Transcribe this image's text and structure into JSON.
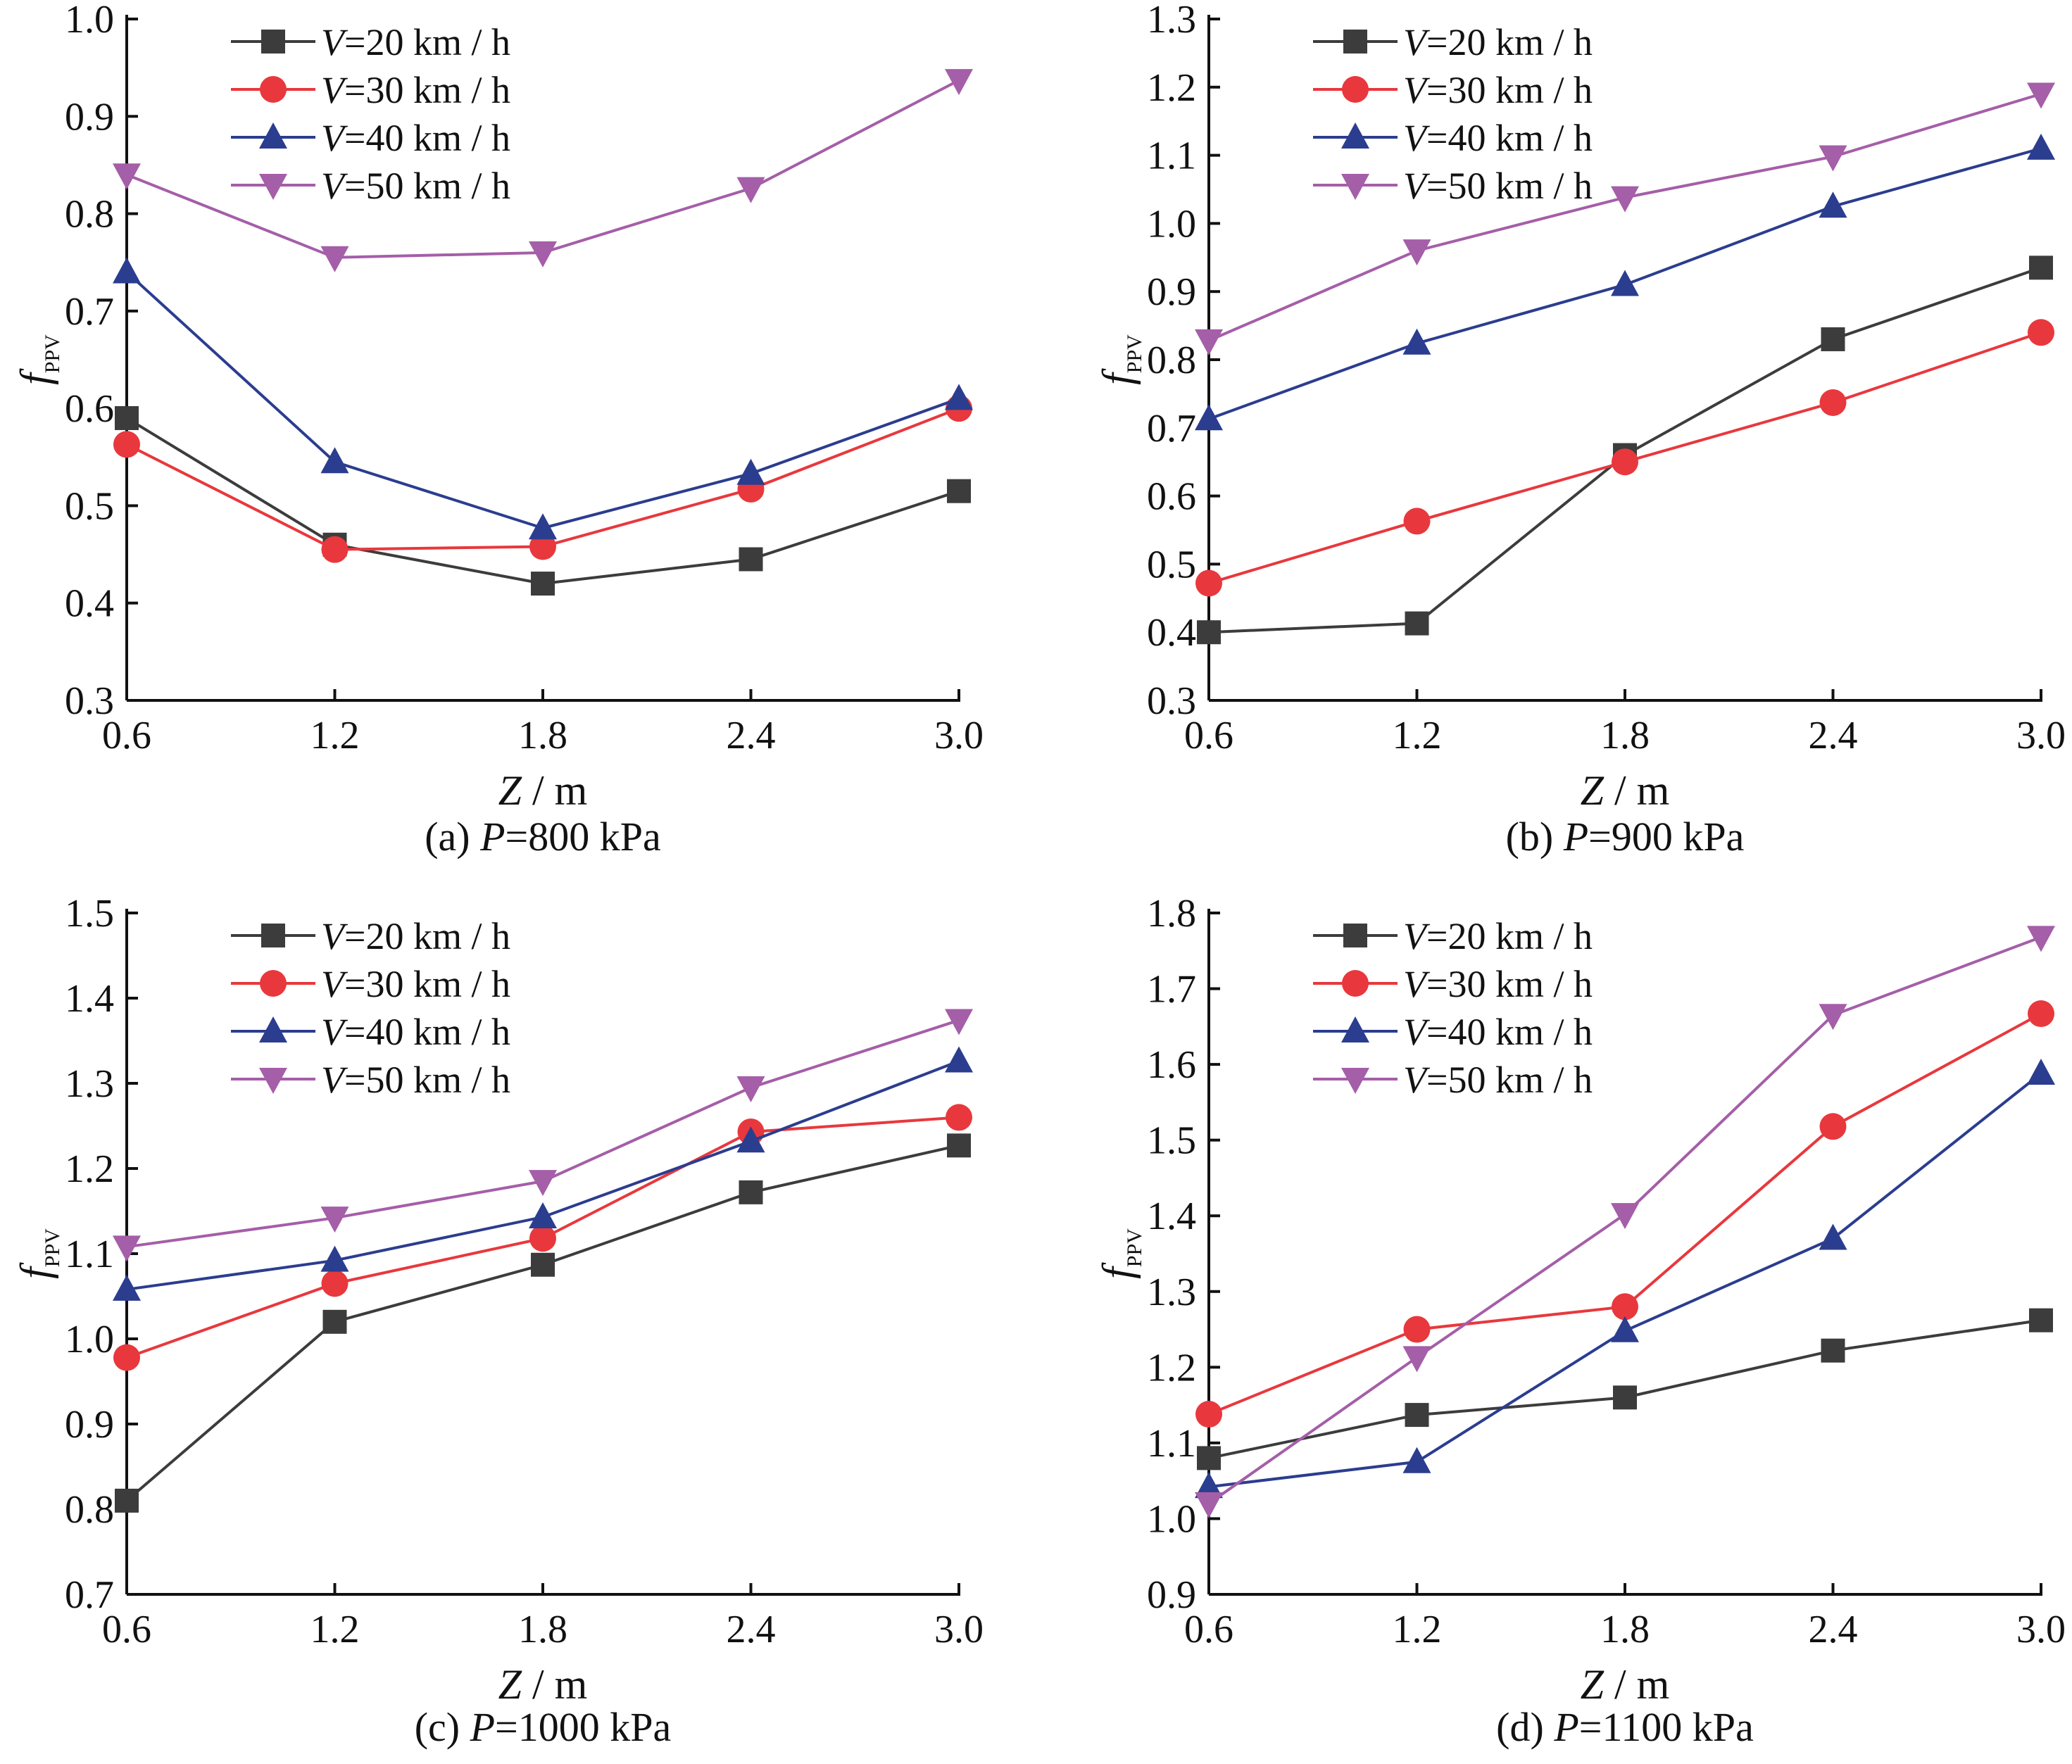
{
  "figure": {
    "series_style": [
      {
        "color": "#3c3c3c",
        "marker": "square"
      },
      {
        "color": "#e8383d",
        "marker": "circle"
      },
      {
        "color": "#2b3d8f",
        "marker": "triangle-up"
      },
      {
        "color": "#a55ea8",
        "marker": "triangle-down"
      }
    ]
  },
  "chart_data": [
    {
      "type": "line",
      "caption_prefix": "(a) ",
      "caption_var": "P",
      "caption_suffix": "=800 kPa",
      "xlabel_var": "Z",
      "xlabel_unit": " / m",
      "ylabel_main": "f",
      "ylabel_sub": "PPV",
      "x": [
        0.6,
        1.2,
        1.8,
        2.4,
        3.0
      ],
      "x_ticks": [
        "0.6",
        "1.2",
        "1.8",
        "2.4",
        "3.0"
      ],
      "xlim": [
        0.6,
        3.0
      ],
      "ylim": [
        0.3,
        1.0
      ],
      "y_ticks": [
        "0.3",
        "0.4",
        "0.5",
        "0.6",
        "0.7",
        "0.8",
        "0.9",
        "1.0"
      ],
      "legend_position": "top-left",
      "series": [
        {
          "name_var": "V",
          "name_rest": "=20 km / h",
          "values": [
            0.59,
            0.46,
            0.42,
            0.445,
            0.515
          ]
        },
        {
          "name_var": "V",
          "name_rest": "=30 km / h",
          "values": [
            0.563,
            0.455,
            0.458,
            0.517,
            0.6
          ]
        },
        {
          "name_var": "V",
          "name_rest": "=40 km / h",
          "values": [
            0.74,
            0.545,
            0.477,
            0.533,
            0.61
          ]
        },
        {
          "name_var": "V",
          "name_rest": "=50 km / h",
          "values": [
            0.84,
            0.755,
            0.76,
            0.826,
            0.937
          ]
        }
      ]
    },
    {
      "type": "line",
      "caption_prefix": "(b) ",
      "caption_var": "P",
      "caption_suffix": "=900 kPa",
      "xlabel_var": "Z",
      "xlabel_unit": " / m",
      "ylabel_main": "f",
      "ylabel_sub": "PPV",
      "x": [
        0.6,
        1.2,
        1.8,
        2.4,
        3.0
      ],
      "x_ticks": [
        "0.6",
        "1.2",
        "1.8",
        "2.4",
        "3.0"
      ],
      "xlim": [
        0.6,
        3.0
      ],
      "ylim": [
        0.3,
        1.3
      ],
      "y_ticks": [
        "0.3",
        "0.4",
        "0.5",
        "0.6",
        "0.7",
        "0.8",
        "0.9",
        "1.0",
        "1.1",
        "1.2",
        "1.3"
      ],
      "legend_position": "top-left",
      "series": [
        {
          "name_var": "V",
          "name_rest": "=20 km / h",
          "values": [
            0.4,
            0.413,
            0.66,
            0.83,
            0.935
          ]
        },
        {
          "name_var": "V",
          "name_rest": "=30 km / h",
          "values": [
            0.472,
            0.563,
            0.65,
            0.737,
            0.84
          ]
        },
        {
          "name_var": "V",
          "name_rest": "=40 km / h",
          "values": [
            0.713,
            0.824,
            0.91,
            1.025,
            1.11
          ]
        },
        {
          "name_var": "V",
          "name_rest": "=50 km / h",
          "values": [
            0.828,
            0.96,
            1.038,
            1.098,
            1.19
          ]
        }
      ]
    },
    {
      "type": "line",
      "caption_prefix": "(c) ",
      "caption_var": "P",
      "caption_suffix": "=1000 kPa",
      "xlabel_var": "Z",
      "xlabel_unit": " / m",
      "ylabel_main": "f",
      "ylabel_sub": "PPV",
      "x": [
        0.6,
        1.2,
        1.8,
        2.4,
        3.0
      ],
      "x_ticks": [
        "0.6",
        "1.2",
        "1.8",
        "2.4",
        "3.0"
      ],
      "xlim": [
        0.6,
        3.0
      ],
      "ylim": [
        0.7,
        1.5
      ],
      "y_ticks": [
        "0.7",
        "0.8",
        "0.9",
        "1.0",
        "1.1",
        "1.2",
        "1.3",
        "1.4",
        "1.5"
      ],
      "legend_position": "top-left",
      "series": [
        {
          "name_var": "V",
          "name_rest": "=20 km / h",
          "values": [
            0.81,
            1.02,
            1.087,
            1.172,
            1.227
          ]
        },
        {
          "name_var": "V",
          "name_rest": "=30 km / h",
          "values": [
            0.978,
            1.065,
            1.118,
            1.243,
            1.26
          ]
        },
        {
          "name_var": "V",
          "name_rest": "=40 km / h",
          "values": [
            1.058,
            1.092,
            1.143,
            1.232,
            1.326
          ]
        },
        {
          "name_var": "V",
          "name_rest": "=50 km / h",
          "values": [
            1.108,
            1.142,
            1.185,
            1.295,
            1.374
          ]
        }
      ]
    },
    {
      "type": "line",
      "caption_prefix": "(d) ",
      "caption_var": "P",
      "caption_suffix": "=1100 kPa",
      "xlabel_var": "Z",
      "xlabel_unit": " / m",
      "ylabel_main": "f",
      "ylabel_sub": "PPV",
      "x": [
        0.6,
        1.2,
        1.8,
        2.4,
        3.0
      ],
      "x_ticks": [
        "0.6",
        "1.2",
        "1.8",
        "2.4",
        "3.0"
      ],
      "xlim": [
        0.6,
        3.0
      ],
      "ylim": [
        0.9,
        1.8
      ],
      "y_ticks": [
        "0.9",
        "1.0",
        "1.1",
        "1.2",
        "1.3",
        "1.4",
        "1.5",
        "1.6",
        "1.7",
        "1.8"
      ],
      "legend_position": "top-left",
      "series": [
        {
          "name_var": "V",
          "name_rest": "=20 km / h",
          "values": [
            1.08,
            1.137,
            1.16,
            1.222,
            1.262
          ]
        },
        {
          "name_var": "V",
          "name_rest": "=30 km / h",
          "values": [
            1.138,
            1.25,
            1.28,
            1.518,
            1.667
          ]
        },
        {
          "name_var": "V",
          "name_rest": "=40 km / h",
          "values": [
            1.042,
            1.075,
            1.248,
            1.37,
            1.588
          ]
        },
        {
          "name_var": "V",
          "name_rest": "=50 km / h",
          "values": [
            1.02,
            1.213,
            1.402,
            1.665,
            1.768
          ]
        }
      ]
    }
  ]
}
